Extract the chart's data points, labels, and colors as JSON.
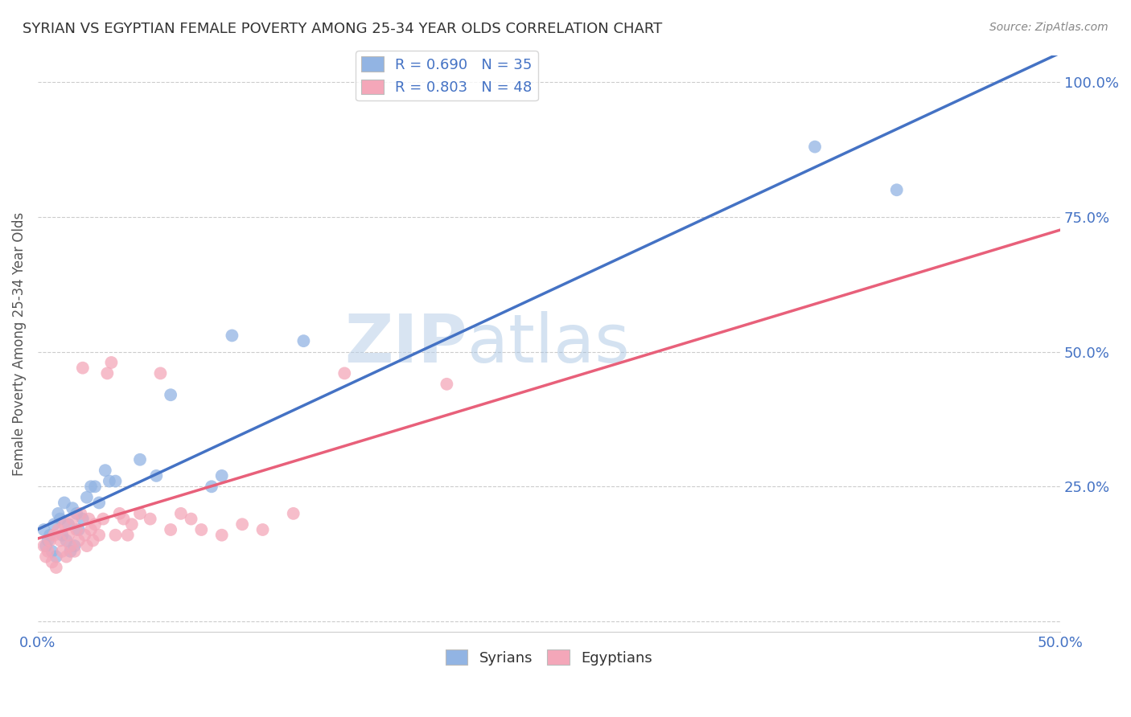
{
  "title": "SYRIAN VS EGYPTIAN FEMALE POVERTY AMONG 25-34 YEAR OLDS CORRELATION CHART",
  "source": "Source: ZipAtlas.com",
  "ylabel": "Female Poverty Among 25-34 Year Olds",
  "xlim": [
    0.0,
    0.5
  ],
  "ylim": [
    -0.02,
    1.05
  ],
  "xticks": [
    0.0,
    0.1,
    0.2,
    0.3,
    0.4,
    0.5
  ],
  "yticks": [
    0.0,
    0.25,
    0.5,
    0.75,
    1.0
  ],
  "ytick_labels": [
    "",
    "25.0%",
    "50.0%",
    "75.0%",
    "100.0%"
  ],
  "xtick_labels": [
    "0.0%",
    "",
    "",
    "",
    "",
    "50.0%"
  ],
  "watermark_big": "ZIP",
  "watermark_small": "atlas",
  "syrian_color": "#92b4e3",
  "egyptian_color": "#f4a7b9",
  "syrian_line_color": "#4472c4",
  "egyptian_line_color": "#e8607a",
  "legend_R_syrian": "R = 0.690",
  "legend_N_syrian": "N = 35",
  "legend_R_egyptian": "R = 0.803",
  "legend_N_egyptian": "N = 48",
  "syrian_x": [
    0.003,
    0.004,
    0.005,
    0.006,
    0.007,
    0.008,
    0.009,
    0.01,
    0.011,
    0.012,
    0.013,
    0.014,
    0.015,
    0.016,
    0.017,
    0.018,
    0.019,
    0.02,
    0.022,
    0.024,
    0.026,
    0.028,
    0.03,
    0.033,
    0.035,
    0.038,
    0.05,
    0.058,
    0.065,
    0.085,
    0.09,
    0.095,
    0.13,
    0.38,
    0.42
  ],
  "syrian_y": [
    0.17,
    0.14,
    0.15,
    0.16,
    0.13,
    0.18,
    0.12,
    0.2,
    0.19,
    0.16,
    0.22,
    0.15,
    0.18,
    0.13,
    0.21,
    0.14,
    0.2,
    0.17,
    0.19,
    0.23,
    0.25,
    0.25,
    0.22,
    0.28,
    0.26,
    0.26,
    0.3,
    0.27,
    0.42,
    0.25,
    0.27,
    0.53,
    0.52,
    0.88,
    0.8
  ],
  "egyptian_x": [
    0.003,
    0.004,
    0.005,
    0.006,
    0.007,
    0.008,
    0.009,
    0.01,
    0.011,
    0.012,
    0.013,
    0.014,
    0.015,
    0.016,
    0.017,
    0.018,
    0.019,
    0.02,
    0.021,
    0.022,
    0.023,
    0.024,
    0.025,
    0.026,
    0.027,
    0.028,
    0.03,
    0.032,
    0.034,
    0.036,
    0.038,
    0.04,
    0.042,
    0.044,
    0.046,
    0.05,
    0.055,
    0.06,
    0.065,
    0.07,
    0.075,
    0.08,
    0.09,
    0.1,
    0.11,
    0.125,
    0.15,
    0.2
  ],
  "egyptian_y": [
    0.14,
    0.12,
    0.13,
    0.15,
    0.11,
    0.16,
    0.1,
    0.17,
    0.15,
    0.13,
    0.18,
    0.12,
    0.16,
    0.14,
    0.19,
    0.13,
    0.17,
    0.15,
    0.2,
    0.47,
    0.16,
    0.14,
    0.19,
    0.17,
    0.15,
    0.18,
    0.16,
    0.19,
    0.46,
    0.48,
    0.16,
    0.2,
    0.19,
    0.16,
    0.18,
    0.2,
    0.19,
    0.46,
    0.17,
    0.2,
    0.19,
    0.17,
    0.16,
    0.18,
    0.17,
    0.2,
    0.46,
    0.44
  ],
  "grid_color": "#cccccc",
  "background_color": "#ffffff",
  "tick_color": "#4472c4"
}
